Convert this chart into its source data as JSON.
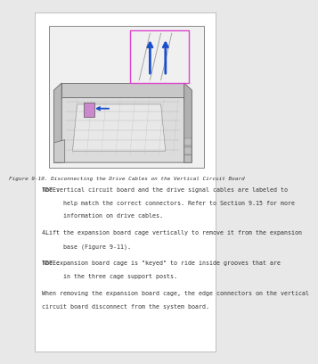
{
  "background_color": "#e8e8e8",
  "page_background": "#ffffff",
  "figure_caption": "Figure 9-10. Disconnecting the Drive Cables on the Vertical Circuit Board",
  "text_blocks": [
    {
      "label": "NOTE:",
      "text": "The vertical circuit board and the drive signal cables are labeled to\n      help match the correct connectors. Refer to Section 9.15 for more\n      information on drive cables.",
      "indent": true
    },
    {
      "label": "4.",
      "text": " Lift the expansion board cage vertically to remove it from the expansion\n      base (Figure 9-11).",
      "indent": false
    },
    {
      "label": "NOTE:",
      "text": "The expansion board cage is \"keyed\" to ride inside grooves that are\n      in the three cage support posts.",
      "indent": true
    },
    {
      "label": "",
      "text": "When removing the expansion board cage, the edge connectors on the vertical\ncircuit board disconnect from the system board.",
      "indent": false
    }
  ],
  "font_size": 4.8,
  "caption_font_size": 4.3,
  "text_color": "#333333",
  "border_color": "#aaaaaa",
  "arrow_color_blue": "#1a4fcc",
  "arrow_color_pink": "#dd44cc"
}
